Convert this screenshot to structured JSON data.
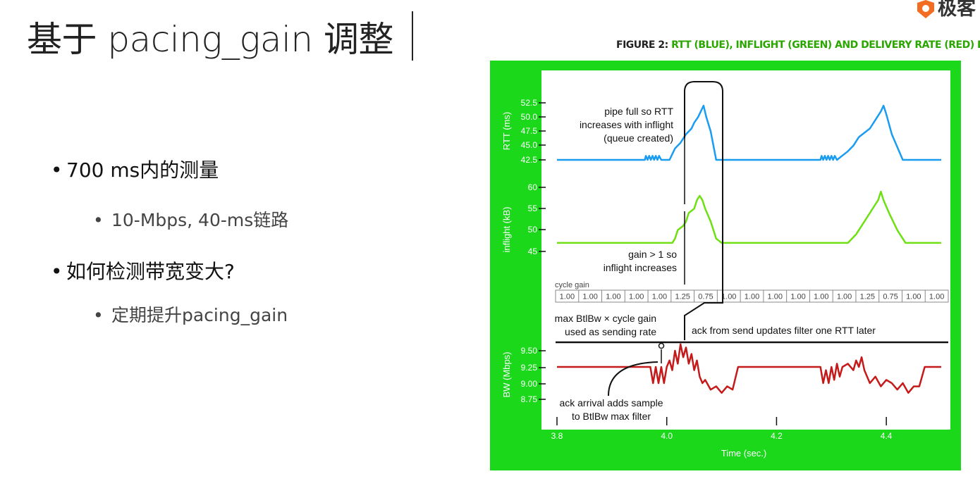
{
  "logo": {
    "text": "极客"
  },
  "slide": {
    "title": "基于 pacing_gain 调整",
    "bullets": [
      {
        "text": "700 ms内的测量",
        "sub": [
          "10-Mbps, 40-ms链路"
        ]
      },
      {
        "text": "如何检测带宽变大?",
        "sub": [
          "定期提升pacing_gain"
        ]
      }
    ]
  },
  "figure": {
    "caption_prefix": "FIGURE 2: ",
    "caption_highlight": "RTT (BLUE), INFLIGHT (GREEN) AND DELIVERY RATE (RED) DETAIL"
  },
  "chart_data": {
    "type": "line",
    "xlabel": "Time (sec.)",
    "x_ticks": [
      "3.8",
      "4.0",
      "4.2",
      "4.4"
    ],
    "xlim": [
      3.8,
      4.5
    ],
    "colors": {
      "rtt": "#1a9cf0",
      "inflight": "#6ee012",
      "bw": "#c41a1a",
      "frame": "#1bd81b"
    },
    "panels": [
      {
        "name": "rtt",
        "ylabel": "RTT (ms)",
        "y_ticks": [
          "52.5",
          "50.0",
          "47.5",
          "45.0",
          "42.5"
        ],
        "ylim": [
          41,
          54
        ],
        "series": [
          {
            "x": [
              3.8,
              3.96,
              3.962,
              3.965,
              3.968,
              3.971,
              3.974,
              3.977,
              3.98,
              3.983,
              3.986,
              3.99,
              4.005,
              4.015,
              4.025,
              4.035,
              4.045,
              4.05,
              4.057,
              4.062,
              4.067,
              4.072,
              4.08,
              4.09,
              4.1,
              4.28,
              4.282,
              4.285,
              4.288,
              4.291,
              4.294,
              4.297,
              4.3,
              4.303,
              4.306,
              4.31,
              4.33,
              4.34,
              4.35,
              4.37,
              4.38,
              4.39,
              4.395,
              4.4,
              4.41,
              4.43,
              4.5
            ],
            "y": [
              42.5,
              42.5,
              43.2,
              42.5,
              43.2,
              42.5,
              43.2,
              42.5,
              43.2,
              42.5,
              43.2,
              42.5,
              42.5,
              44.5,
              45.5,
              47,
              48,
              49,
              50,
              51,
              52,
              50,
              47.5,
              42.5,
              42.5,
              42.5,
              43.2,
              42.5,
              43.2,
              42.5,
              43.2,
              42.5,
              43.2,
              42.5,
              43.2,
              42.5,
              44,
              45,
              46.5,
              48,
              49.5,
              51,
              52,
              50.5,
              47,
              42.5,
              42.5
            ]
          }
        ]
      },
      {
        "name": "inflight",
        "ylabel": "inflight (kB)",
        "y_ticks": [
          "60",
          "55",
          "50",
          "45"
        ],
        "ylim": [
          43,
          62
        ],
        "series": [
          {
            "x": [
              3.8,
              4.01,
              4.015,
              4.02,
              4.03,
              4.035,
              4.04,
              4.05,
              4.055,
              4.06,
              4.065,
              4.07,
              4.08,
              4.09,
              4.1,
              4.12,
              4.13,
              4.33,
              4.345,
              4.355,
              4.365,
              4.375,
              4.385,
              4.39,
              4.395,
              4.405,
              4.42,
              4.435,
              4.45,
              4.47,
              4.5
            ],
            "y": [
              47,
              47,
              48,
              50,
              51,
              52,
              54,
              55,
              57,
              58,
              57,
              55,
              52,
              48,
              47,
              47,
              47,
              47,
              49,
              51,
              53,
              55,
              57,
              59,
              57,
              54,
              50,
              47,
              47,
              47,
              47
            ]
          }
        ]
      },
      {
        "name": "bw",
        "ylabel": "BW (Mbps)",
        "y_ticks": [
          "9.50",
          "9.25",
          "9.00",
          "8.75"
        ],
        "ylim": [
          8.5,
          9.75
        ],
        "series": [
          {
            "x": [
              3.8,
              3.97,
              3.975,
              3.98,
              3.985,
              3.99,
              3.995,
              4.0,
              4.005,
              4.01,
              4.015,
              4.02,
              4.025,
              4.03,
              4.035,
              4.04,
              4.045,
              4.05,
              4.055,
              4.06,
              4.065,
              4.07,
              4.08,
              4.09,
              4.1,
              4.11,
              4.12,
              4.13,
              4.28,
              4.285,
              4.29,
              4.295,
              4.3,
              4.305,
              4.31,
              4.315,
              4.32,
              4.33,
              4.34,
              4.345,
              4.35,
              4.355,
              4.36,
              4.37,
              4.38,
              4.39,
              4.4,
              4.41,
              4.42,
              4.43,
              4.44,
              4.45,
              4.46,
              4.47,
              4.5
            ],
            "y": [
              9.25,
              9.25,
              9.0,
              9.25,
              9.0,
              9.25,
              9.0,
              9.25,
              9.35,
              9.2,
              9.5,
              9.3,
              9.6,
              9.4,
              9.55,
              9.3,
              9.45,
              9.2,
              9.35,
              9.1,
              9.0,
              9.05,
              8.9,
              8.95,
              8.85,
              8.95,
              8.9,
              9.25,
              9.25,
              9.0,
              9.2,
              9.0,
              9.25,
              9.05,
              9.3,
              9.1,
              9.25,
              9.3,
              9.2,
              9.35,
              9.25,
              9.4,
              9.2,
              9.0,
              9.1,
              8.95,
              9.05,
              9.0,
              8.9,
              9.0,
              8.85,
              8.95,
              8.95,
              9.25,
              9.25
            ]
          }
        ]
      }
    ],
    "cycle_gain": {
      "label": "cycle gain",
      "cells": [
        "1.00",
        "1.00",
        "1.00",
        "1.00",
        "1.00",
        "1.25",
        "0.75",
        "1.00",
        "1.00",
        "1.00",
        "1.00",
        "1.00",
        "1.00",
        "1.25",
        "0.75",
        "1.00",
        "1.00"
      ]
    },
    "annotations": {
      "pipe_full": [
        "pipe full so RTT",
        "increases with inflight",
        "(queue created)"
      ],
      "gain_gt_1": [
        "gain > 1 so",
        "inflight increases"
      ],
      "max_btlbw": [
        "max BtlBw × cycle gain",
        "used as sending rate"
      ],
      "ack_send": "ack from send updates filter one RTT later",
      "ack_arrival": [
        "ack arrival adds sample",
        "to BtlBw max filter"
      ]
    }
  }
}
